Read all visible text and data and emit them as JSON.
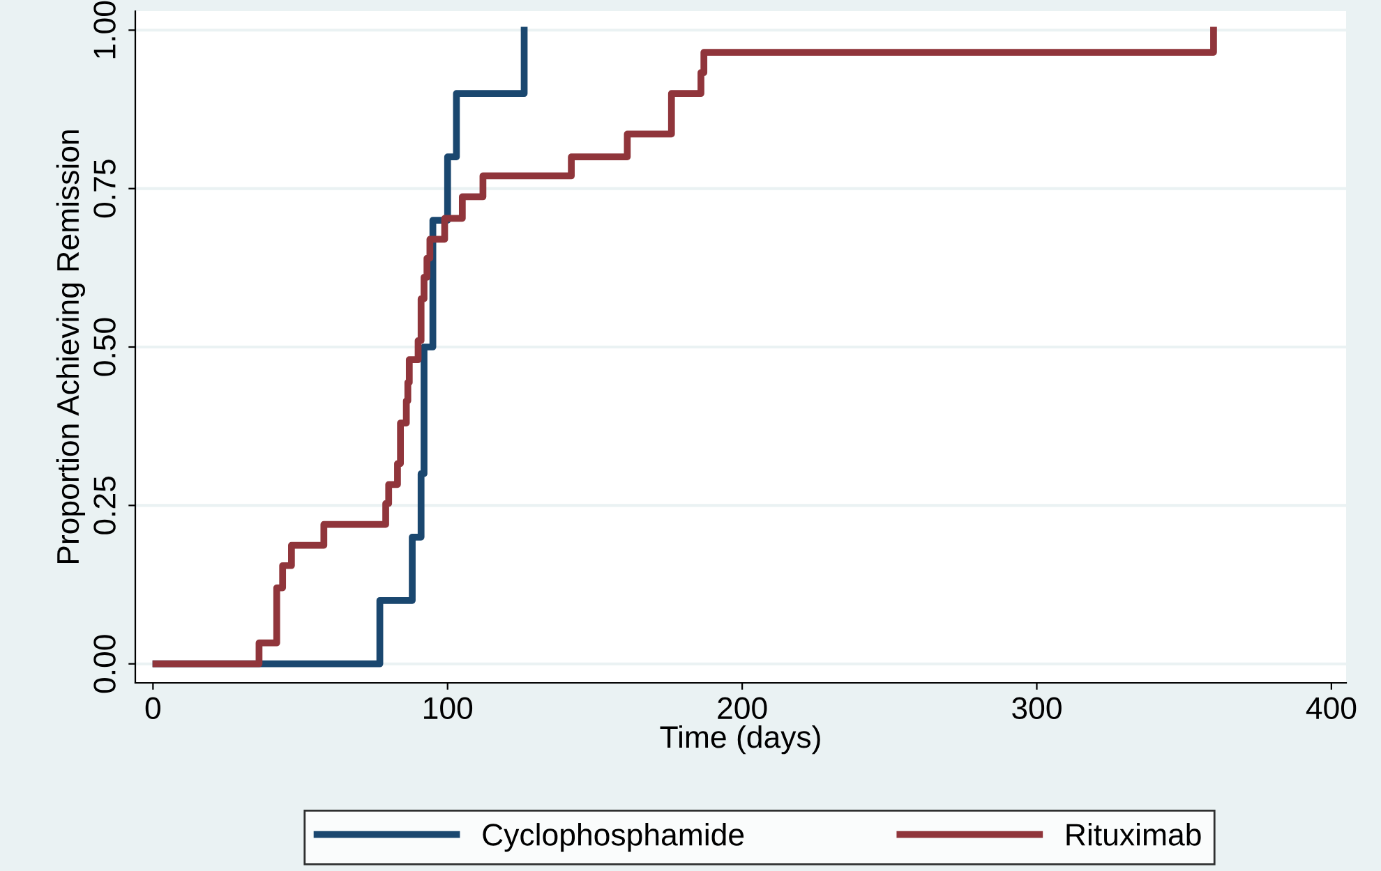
{
  "chart_data": {
    "type": "step",
    "xlabel": "Time (days)",
    "ylabel": "Proportion Achieving Remission",
    "xlim": [
      -6,
      405
    ],
    "xticks": [
      0,
      100,
      200,
      300,
      400
    ],
    "ylim": [
      -0.03,
      1.03
    ],
    "yticks": [
      {
        "value": 0,
        "label": "0.00"
      },
      {
        "value": 0.25,
        "label": "0.25"
      },
      {
        "value": 0.5,
        "label": "0.50"
      },
      {
        "value": 0.75,
        "label": "0.75"
      },
      {
        "value": 1,
        "label": "1.00"
      }
    ],
    "grid": "y",
    "legend": "bottom",
    "line_style": "solid",
    "marker": "none",
    "series": [
      {
        "name": "Cyclophosphamide",
        "color": "#1a476f",
        "x": [
          1,
          77,
          88,
          91,
          92,
          95,
          100,
          103,
          126
        ],
        "values": [
          0,
          0.1,
          0.2,
          0.3,
          0.5,
          0.7,
          0.8,
          0.9,
          1.0
        ]
      },
      {
        "name": "Rituximab",
        "color": "#90353b",
        "x": [
          1,
          36,
          42,
          44,
          47,
          58,
          79,
          80,
          83,
          84,
          86,
          86.5,
          87,
          90,
          91,
          92,
          93,
          94,
          99,
          105,
          112,
          142,
          161,
          176,
          186,
          187,
          360
        ],
        "values": [
          0,
          0.033,
          0.12,
          0.155,
          0.187,
          0.22,
          0.253,
          0.283,
          0.316,
          0.38,
          0.415,
          0.444,
          0.48,
          0.51,
          0.576,
          0.61,
          0.64,
          0.67,
          0.703,
          0.737,
          0.77,
          0.8,
          0.836,
          0.9,
          0.933,
          0.965,
          1.0
        ]
      }
    ]
  }
}
